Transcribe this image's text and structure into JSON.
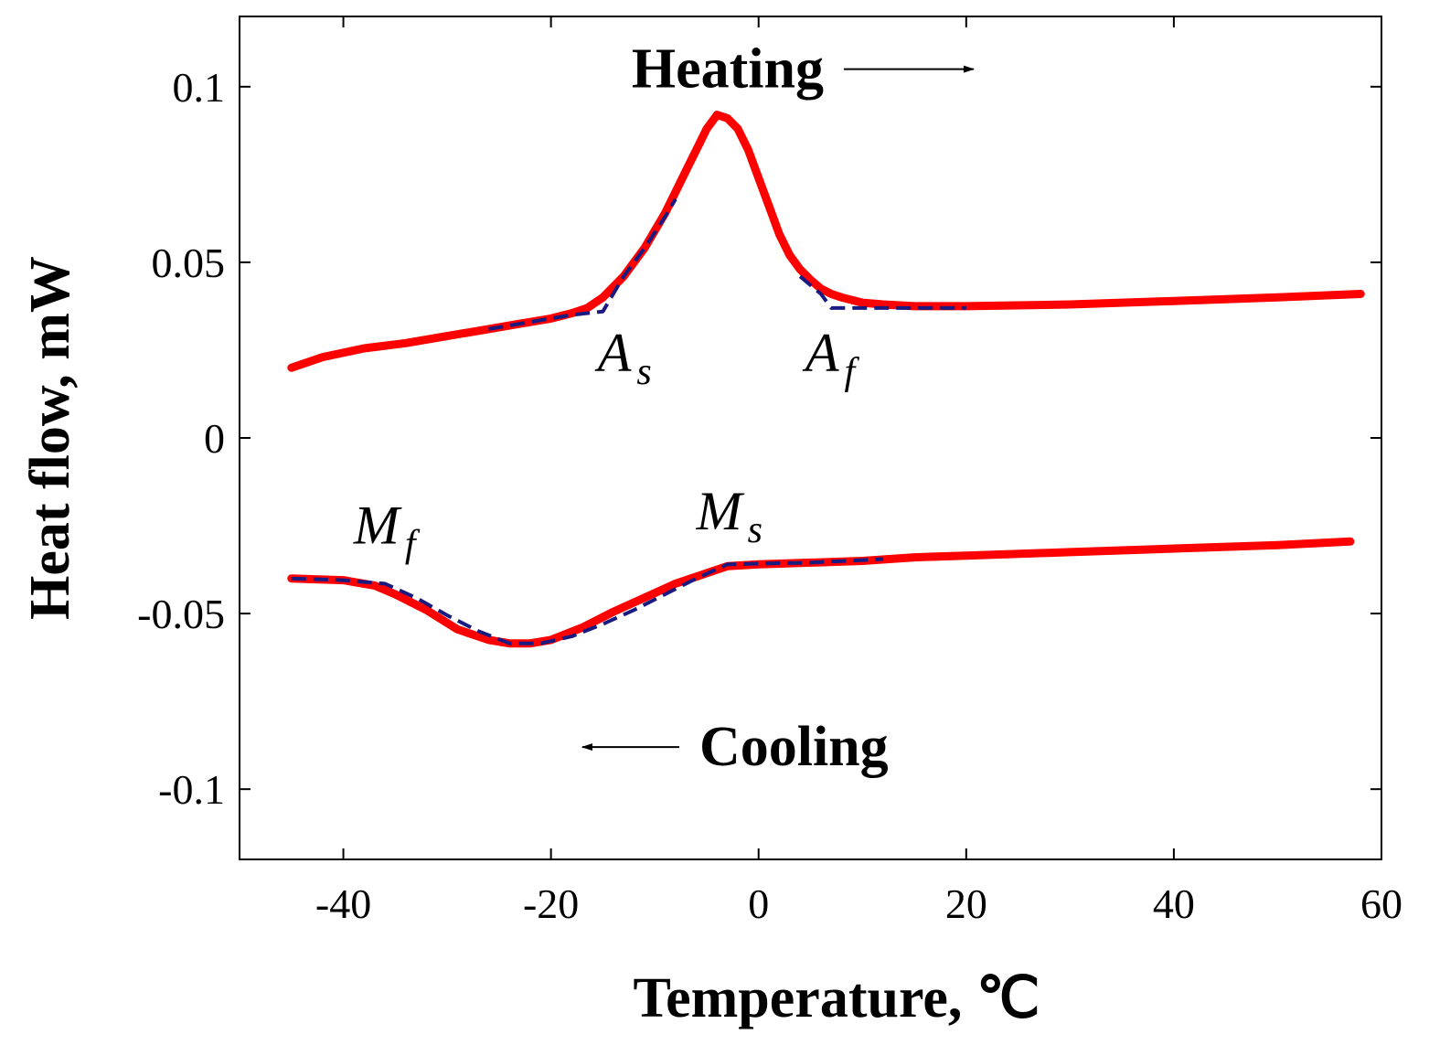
{
  "chart_data": {
    "type": "line",
    "xlabel": "Temperature, ℃",
    "ylabel": "Heat flow, mW",
    "xlim": [
      -50,
      60
    ],
    "ylim": [
      -0.12,
      0.12
    ],
    "xticks": [
      -40,
      -20,
      0,
      20,
      40,
      60
    ],
    "yticks": [
      0.1,
      0.05,
      0,
      -0.05,
      -0.1
    ],
    "xtick_labels": [
      "-40",
      "-20",
      "0",
      "20",
      "40",
      "60"
    ],
    "ytick_labels": [
      "0.1",
      "0.05",
      "0",
      "-0.05",
      "-0.1"
    ],
    "grid": false,
    "colors": {
      "measured": "#ff0000",
      "tangent": "#1a1a80"
    },
    "series": [
      {
        "name": "Heating curve",
        "style": "solid",
        "x": [
          -45,
          -42,
          -38,
          -34,
          -30,
          -26,
          -23,
          -20,
          -18,
          -16.5,
          -15,
          -13,
          -11,
          -9,
          -7,
          -6,
          -5,
          -4,
          -3,
          -2,
          -1,
          0,
          1,
          2,
          3,
          4,
          5,
          6,
          7,
          8,
          10,
          12,
          15,
          20,
          30,
          40,
          50,
          58
        ],
        "y": [
          0.02,
          0.023,
          0.0255,
          0.027,
          0.029,
          0.031,
          0.0325,
          0.034,
          0.0355,
          0.037,
          0.04,
          0.046,
          0.054,
          0.064,
          0.076,
          0.082,
          0.088,
          0.092,
          0.091,
          0.088,
          0.082,
          0.074,
          0.066,
          0.058,
          0.052,
          0.048,
          0.045,
          0.0425,
          0.041,
          0.04,
          0.0385,
          0.038,
          0.0375,
          0.0375,
          0.038,
          0.039,
          0.04,
          0.041
        ]
      },
      {
        "name": "Cooling curve",
        "style": "solid",
        "x": [
          -45,
          -40,
          -37,
          -35,
          -32,
          -29,
          -26,
          -24,
          -22,
          -20,
          -17,
          -14,
          -11,
          -8,
          -5,
          -3,
          0,
          5,
          10,
          15,
          20,
          30,
          40,
          50,
          57
        ],
        "y": [
          -0.04,
          -0.0405,
          -0.042,
          -0.0445,
          -0.049,
          -0.0545,
          -0.0575,
          -0.0585,
          -0.0585,
          -0.0575,
          -0.054,
          -0.0495,
          -0.0455,
          -0.0415,
          -0.0385,
          -0.0365,
          -0.036,
          -0.0355,
          -0.035,
          -0.034,
          -0.0335,
          -0.0325,
          -0.0315,
          -0.0305,
          -0.0295
        ]
      },
      {
        "name": "Heating tangent construction",
        "style": "dashed",
        "x": [
          -26,
          -22,
          -18,
          -15,
          -13,
          -11,
          -9,
          -8
        ],
        "y": [
          0.031,
          0.033,
          0.035,
          0.036,
          0.046,
          0.054,
          0.063,
          0.068
        ]
      },
      {
        "name": "Heating tangent construction right",
        "style": "dashed",
        "x": [
          4,
          6,
          7,
          10,
          15,
          20
        ],
        "y": [
          0.046,
          0.041,
          0.037,
          0.037,
          0.037,
          0.037
        ]
      },
      {
        "name": "Cooling tangent construction",
        "style": "dashed",
        "x": [
          -45,
          -40,
          -36,
          -33,
          -30,
          -27,
          -24,
          -21,
          -18,
          -15,
          -12,
          -9,
          -6,
          -3,
          0,
          5,
          12
        ],
        "y": [
          -0.04,
          -0.0405,
          -0.0415,
          -0.0455,
          -0.0505,
          -0.055,
          -0.0585,
          -0.0585,
          -0.0565,
          -0.053,
          -0.049,
          -0.0445,
          -0.04,
          -0.036,
          -0.0358,
          -0.0355,
          -0.0345
        ]
      }
    ],
    "annotations": [
      {
        "label": "Heating",
        "arrow": "right",
        "at": [
          -5,
          0.105
        ]
      },
      {
        "label": "Cooling",
        "arrow": "left",
        "at": [
          -5,
          -0.088
        ]
      }
    ],
    "transition_points": [
      {
        "main": "A",
        "sub": "s",
        "at": [
          -15.5,
          0.019
        ]
      },
      {
        "main": "A",
        "sub": "f",
        "at": [
          4.5,
          0.019
        ]
      },
      {
        "main": "M",
        "sub": "f",
        "at": [
          -39,
          -0.03
        ]
      },
      {
        "main": "M",
        "sub": "s",
        "at": [
          -6,
          -0.026
        ]
      }
    ]
  }
}
